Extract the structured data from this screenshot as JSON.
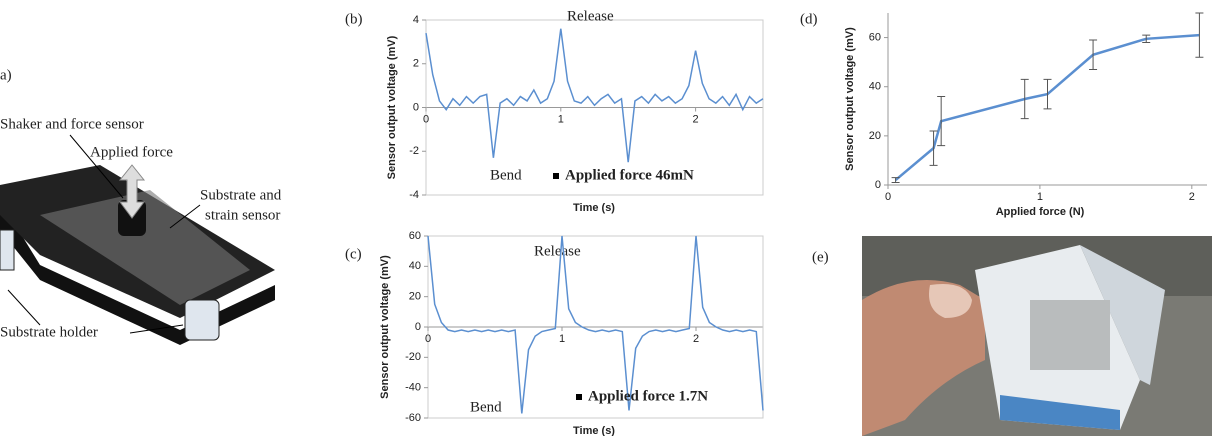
{
  "diagram": {
    "label": "a)",
    "shaker": "Shaker and force sensor",
    "force": "Applied force",
    "substrate": [
      "Substrate and",
      "strain sensor"
    ],
    "holder": "Substrate holder"
  },
  "photo": {
    "label": "(e)"
  },
  "chart_data": [
    {
      "type": "line",
      "panel_label": "(b)",
      "x_label": "Time (s)",
      "y_label": "Sensor output voltage (mV)",
      "annotations": [
        "Release",
        "Bend"
      ],
      "x": [
        0,
        0.05,
        0.1,
        0.15,
        0.2,
        0.25,
        0.3,
        0.35,
        0.4,
        0.45,
        0.5,
        0.55,
        0.6,
        0.65,
        0.7,
        0.75,
        0.8,
        0.85,
        0.9,
        0.95,
        1,
        1.05,
        1.1,
        1.15,
        1.2,
        1.25,
        1.3,
        1.35,
        1.4,
        1.45,
        1.5,
        1.55,
        1.6,
        1.65,
        1.7,
        1.75,
        1.8,
        1.85,
        1.9,
        1.95,
        2,
        2.05,
        2.1,
        2.15,
        2.2,
        2.25,
        2.3,
        2.35,
        2.4,
        2.45,
        2.5
      ],
      "series": [
        {
          "name": "Applied force 46mN",
          "color": "#5b8fd0",
          "values": [
            3.4,
            1.5,
            0.3,
            -0.1,
            0.4,
            0.1,
            0.5,
            0.2,
            0.5,
            0.6,
            -2.3,
            0.2,
            0.4,
            0.1,
            0.5,
            0.3,
            0.8,
            0.2,
            0.4,
            1.2,
            3.6,
            1.2,
            0.3,
            0.2,
            0.5,
            0.1,
            0.4,
            0.6,
            0.2,
            0.4,
            -2.5,
            0.3,
            0.5,
            0.2,
            0.6,
            0.3,
            0.5,
            0.2,
            0.4,
            1.0,
            2.6,
            1.1,
            0.4,
            0.2,
            0.5,
            0.1,
            0.6,
            -0.1,
            0.5,
            0.2,
            0.4
          ]
        }
      ],
      "xlim": [
        0,
        2.5
      ],
      "xticks": [
        0,
        1,
        2
      ],
      "ylim": [
        -4,
        4
      ],
      "yticks": [
        -4,
        -2,
        0,
        2,
        4
      ]
    },
    {
      "type": "line",
      "panel_label": "(c)",
      "x_label": "Time (s)",
      "y_label": "Sensor output voltage (mV)",
      "annotations": [
        "Release",
        "Bend"
      ],
      "x": [
        0,
        0.05,
        0.1,
        0.15,
        0.2,
        0.25,
        0.3,
        0.35,
        0.4,
        0.45,
        0.5,
        0.55,
        0.6,
        0.65,
        0.7,
        0.75,
        0.8,
        0.85,
        0.9,
        0.95,
        1,
        1.05,
        1.1,
        1.15,
        1.2,
        1.25,
        1.3,
        1.35,
        1.4,
        1.45,
        1.5,
        1.55,
        1.6,
        1.65,
        1.7,
        1.75,
        1.8,
        1.85,
        1.9,
        1.95,
        2,
        2.05,
        2.1,
        2.15,
        2.2,
        2.25,
        2.3,
        2.35,
        2.4,
        2.45,
        2.5
      ],
      "series": [
        {
          "name": "Applied force 1.7N",
          "color": "#5b8fd0",
          "values": [
            60,
            15,
            3,
            -2,
            -3,
            -2,
            -3,
            -2,
            -3,
            -2,
            -3,
            -2,
            -3,
            -2,
            -57,
            -15,
            -6,
            -3,
            -2,
            -1,
            60,
            12,
            3,
            0,
            -2,
            -3,
            -2,
            -3,
            -2,
            -3,
            -55,
            -14,
            -6,
            -3,
            -2,
            -3,
            -2,
            -3,
            -2,
            -1,
            60,
            13,
            3,
            0,
            -2,
            -3,
            -2,
            -3,
            -2,
            -3,
            -55
          ]
        }
      ],
      "xlim": [
        0,
        2.5
      ],
      "xticks": [
        0,
        1,
        2
      ],
      "ylim": [
        -60,
        60
      ],
      "yticks": [
        -60,
        -40,
        -20,
        0,
        20,
        40,
        60
      ]
    },
    {
      "type": "errorline",
      "panel_label": "(d)",
      "x_label": "Applied force (N)",
      "y_label": "Sensor output voltage (mV)",
      "x": [
        0.05,
        0.3,
        0.35,
        0.9,
        1.05,
        1.35,
        1.7,
        2.05
      ],
      "series": [
        {
          "color": "#5b8fd0",
          "values": [
            2,
            15,
            26,
            35,
            37,
            53,
            59.5,
            61
          ],
          "errors": [
            1,
            7,
            10,
            8,
            6,
            6,
            1.5,
            9
          ]
        }
      ],
      "xlim": [
        0,
        2.1
      ],
      "xticks": [
        0,
        1,
        2
      ],
      "ylim": [
        0,
        70
      ],
      "yticks": [
        0,
        20,
        40,
        60
      ]
    }
  ]
}
